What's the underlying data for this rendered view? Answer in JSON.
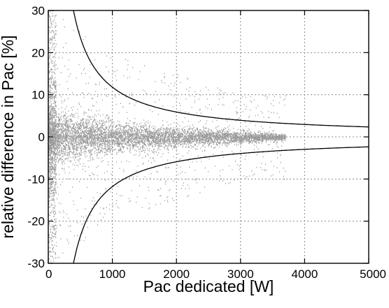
{
  "chart_data": {
    "type": "scatter",
    "title": "",
    "xlabel": "Pac dedicated [W]",
    "ylabel": "relative difference in Pac [%]",
    "xlim": [
      0,
      5000
    ],
    "ylim": [
      -30,
      30
    ],
    "x_ticks": [
      0,
      1000,
      2000,
      3000,
      4000,
      5000
    ],
    "y_ticks": [
      -30,
      -20,
      -10,
      0,
      10,
      20,
      30
    ],
    "x_tick_labels": [
      "0",
      "1000",
      "2000",
      "3000",
      "4000",
      "5000"
    ],
    "y_tick_labels": [
      "-30",
      "-20",
      "-10",
      "0",
      "10",
      "20",
      "30"
    ],
    "grid": true,
    "legend": "none",
    "colors": {
      "points": "#9a9a9a",
      "curves": "#000000",
      "grid": "#8a8a8a"
    },
    "series": [
      {
        "kind": "scatter",
        "description_values": "dense cloud of points, spread narrowing with increasing power",
        "x_range": [
          0,
          3700
        ],
        "spread_core": [
          [
            100,
            5
          ],
          [
            1000,
            3
          ],
          [
            2000,
            2
          ],
          [
            3000,
            1.2
          ],
          [
            3600,
            0.7
          ]
        ],
        "spread_outer": [
          [
            50,
            30
          ],
          [
            500,
            25
          ],
          [
            1000,
            20
          ],
          [
            2000,
            15
          ],
          [
            3000,
            10
          ]
        ]
      },
      {
        "kind": "line",
        "label_points": [
          [
            392,
            30
          ],
          [
            500,
            23.6
          ],
          [
            1000,
            11.8
          ],
          [
            2000,
            5.9
          ],
          [
            3000,
            3.93
          ],
          [
            4000,
            2.95
          ],
          [
            5000,
            2.36
          ]
        ]
      },
      {
        "kind": "line",
        "label_points": [
          [
            392,
            -30
          ],
          [
            500,
            -23.6
          ],
          [
            1000,
            -11.8
          ],
          [
            2000,
            -5.9
          ],
          [
            3000,
            -3.93
          ],
          [
            4000,
            -2.95
          ],
          [
            5000,
            -2.36
          ]
        ]
      }
    ]
  }
}
